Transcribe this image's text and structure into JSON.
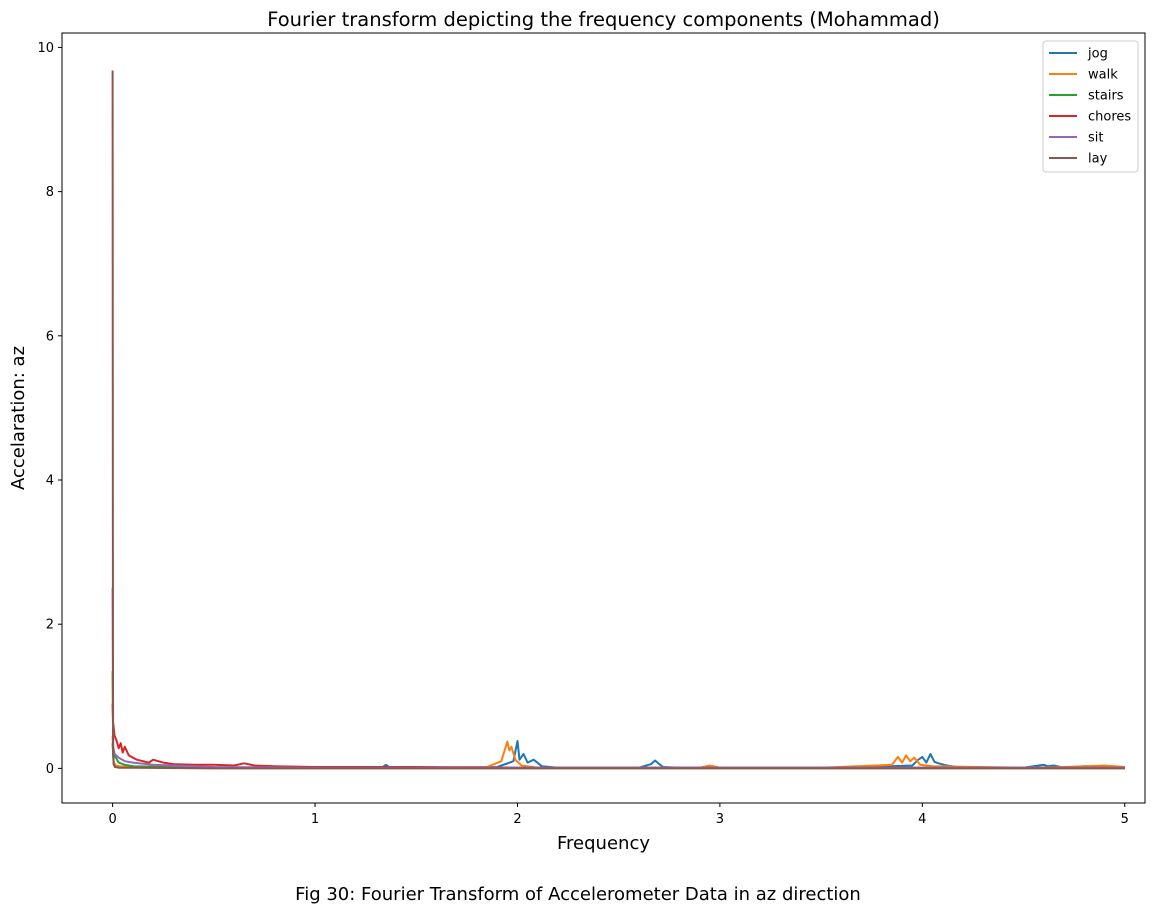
{
  "chart_data": {
    "type": "line",
    "title": "Fourier transform depicting the frequency components (Mohammad)",
    "xlabel": "Frequency",
    "ylabel": "Accelaration: az",
    "xlim": [
      -0.25,
      5.1
    ],
    "ylim": [
      -0.48,
      10.2
    ],
    "xticks": [
      0,
      1,
      2,
      3,
      4,
      5
    ],
    "yticks": [
      0,
      2,
      4,
      6,
      8,
      10
    ],
    "grid": false,
    "legend_position": "top-right",
    "series": [
      {
        "name": "jog",
        "color": "#1f77b4",
        "x": [
          0,
          0.005,
          0.01,
          0.05,
          0.2,
          0.6,
          1.0,
          1.33,
          1.35,
          1.37,
          1.6,
          1.9,
          1.98,
          2.0,
          2.01,
          2.03,
          2.05,
          2.08,
          2.12,
          2.2,
          2.6,
          2.66,
          2.68,
          2.7,
          2.72,
          2.8,
          3.2,
          3.6,
          3.95,
          3.98,
          4.0,
          4.02,
          4.04,
          4.06,
          4.08,
          4.12,
          4.2,
          4.5,
          4.6,
          4.62,
          4.65,
          4.7,
          4.8,
          5.0
        ],
        "y": [
          0.35,
          0.06,
          0.04,
          0.02,
          0.02,
          0.01,
          0.02,
          0.01,
          0.05,
          0.01,
          0.01,
          0.02,
          0.1,
          0.38,
          0.12,
          0.2,
          0.08,
          0.12,
          0.03,
          0.01,
          0.01,
          0.06,
          0.11,
          0.06,
          0.02,
          0.01,
          0.01,
          0.01,
          0.04,
          0.12,
          0.16,
          0.08,
          0.2,
          0.09,
          0.07,
          0.04,
          0.01,
          0.01,
          0.05,
          0.03,
          0.04,
          0.01,
          0.03,
          0.02
        ]
      },
      {
        "name": "walk",
        "color": "#ff7f0e",
        "x": [
          0,
          0.005,
          0.02,
          0.1,
          0.5,
          1.0,
          1.5,
          1.85,
          1.92,
          1.95,
          1.96,
          1.97,
          1.99,
          2.02,
          2.1,
          2.5,
          2.9,
          2.95,
          3.0,
          3.5,
          3.85,
          3.88,
          3.9,
          3.92,
          3.94,
          3.96,
          3.99,
          4.05,
          4.5,
          4.7,
          4.9,
          5.0
        ],
        "y": [
          0.45,
          0.08,
          0.03,
          0.02,
          0.01,
          0.01,
          0.01,
          0.02,
          0.1,
          0.37,
          0.25,
          0.3,
          0.12,
          0.04,
          0.01,
          0.01,
          0.01,
          0.04,
          0.01,
          0.01,
          0.05,
          0.16,
          0.08,
          0.18,
          0.1,
          0.15,
          0.05,
          0.03,
          0.01,
          0.02,
          0.04,
          0.02
        ]
      },
      {
        "name": "stairs",
        "color": "#2ca02c",
        "x": [
          0,
          0.003,
          0.01,
          0.03,
          0.06,
          0.1,
          0.3,
          0.6,
          1.0,
          1.5,
          2.0,
          2.5,
          3.0,
          3.5,
          4.0,
          4.5,
          5.0
        ],
        "y": [
          1.35,
          0.15,
          0.18,
          0.08,
          0.05,
          0.03,
          0.02,
          0.01,
          0.02,
          0.01,
          0.01,
          0.01,
          0.01,
          0.01,
          0.01,
          0.01,
          0.01
        ]
      },
      {
        "name": "chores",
        "color": "#d62728",
        "x": [
          0,
          0.002,
          0.01,
          0.02,
          0.03,
          0.04,
          0.05,
          0.06,
          0.08,
          0.1,
          0.12,
          0.15,
          0.18,
          0.2,
          0.25,
          0.3,
          0.4,
          0.5,
          0.6,
          0.65,
          0.7,
          0.8,
          1.0,
          1.2,
          1.5,
          2.0,
          2.5,
          3.0,
          3.5,
          4.0,
          4.5,
          5.0
        ],
        "y": [
          0.9,
          0.65,
          0.45,
          0.38,
          0.28,
          0.35,
          0.22,
          0.3,
          0.18,
          0.15,
          0.12,
          0.1,
          0.08,
          0.12,
          0.08,
          0.06,
          0.05,
          0.05,
          0.04,
          0.07,
          0.04,
          0.03,
          0.02,
          0.02,
          0.02,
          0.01,
          0.01,
          0.01,
          0.01,
          0.01,
          0.01,
          0.01
        ]
      },
      {
        "name": "sit",
        "color": "#9467bd",
        "x": [
          0,
          0.003,
          0.01,
          0.03,
          0.06,
          0.1,
          0.2,
          0.5,
          1.0,
          2.0,
          3.0,
          4.0,
          5.0
        ],
        "y": [
          2.5,
          0.3,
          0.2,
          0.15,
          0.1,
          0.08,
          0.05,
          0.02,
          0.01,
          0.01,
          0.01,
          0.01,
          0.01
        ]
      },
      {
        "name": "lay",
        "color": "#8c564b",
        "x": [
          0,
          0.002,
          0.006,
          0.012,
          0.03,
          0.1,
          0.5,
          1.0,
          2.0,
          3.0,
          4.0,
          5.0
        ],
        "y": [
          9.68,
          0.3,
          0.05,
          0.02,
          0.01,
          0.01,
          0.0,
          0.0,
          0.0,
          0.0,
          0.0,
          0.0
        ]
      }
    ]
  },
  "caption": "Fig 30: Fourier Transform of Accelerometer Data in az direction"
}
